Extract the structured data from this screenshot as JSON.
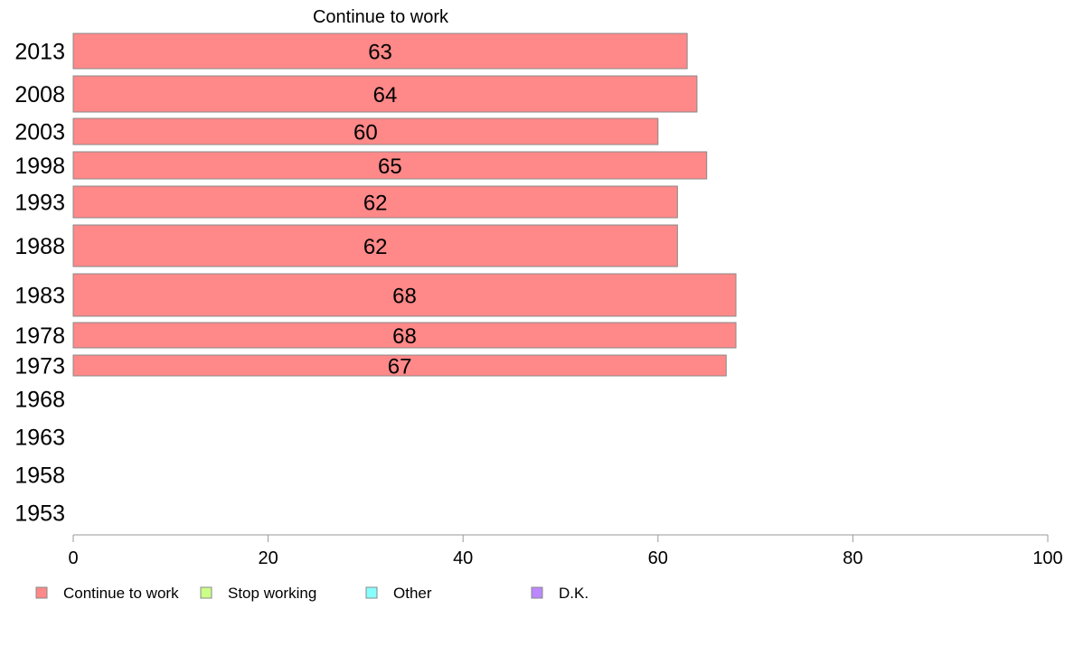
{
  "chart_data": {
    "type": "bar",
    "orientation": "horizontal",
    "title": "Continue to work",
    "categories": [
      "2013",
      "2008",
      "2003",
      "1998",
      "1993",
      "1988",
      "1983",
      "1978",
      "1973",
      "1968",
      "1963",
      "1958",
      "1953"
    ],
    "series": [
      {
        "name": "Continue to work",
        "color": "#ff8888",
        "values": [
          63,
          64,
          60,
          65,
          62,
          62,
          68,
          68,
          67,
          null,
          null,
          null,
          null
        ],
        "labels": [
          "63",
          "64",
          "60",
          "65",
          "62",
          "62",
          "68",
          "68",
          "67",
          "",
          "",
          "",
          ""
        ]
      }
    ],
    "xlim": [
      0,
      100
    ],
    "xticks": [
      0,
      20,
      40,
      60,
      80,
      100
    ],
    "grid": false,
    "legend": {
      "placement": "bottom",
      "entries": [
        {
          "label": "Continue to work",
          "color": "#ff8888"
        },
        {
          "label": "Stop working",
          "color": "#ccff88"
        },
        {
          "label": "Other",
          "color": "#88ffff"
        },
        {
          "label": "D.K.",
          "color": "#bb88ff"
        }
      ]
    }
  }
}
